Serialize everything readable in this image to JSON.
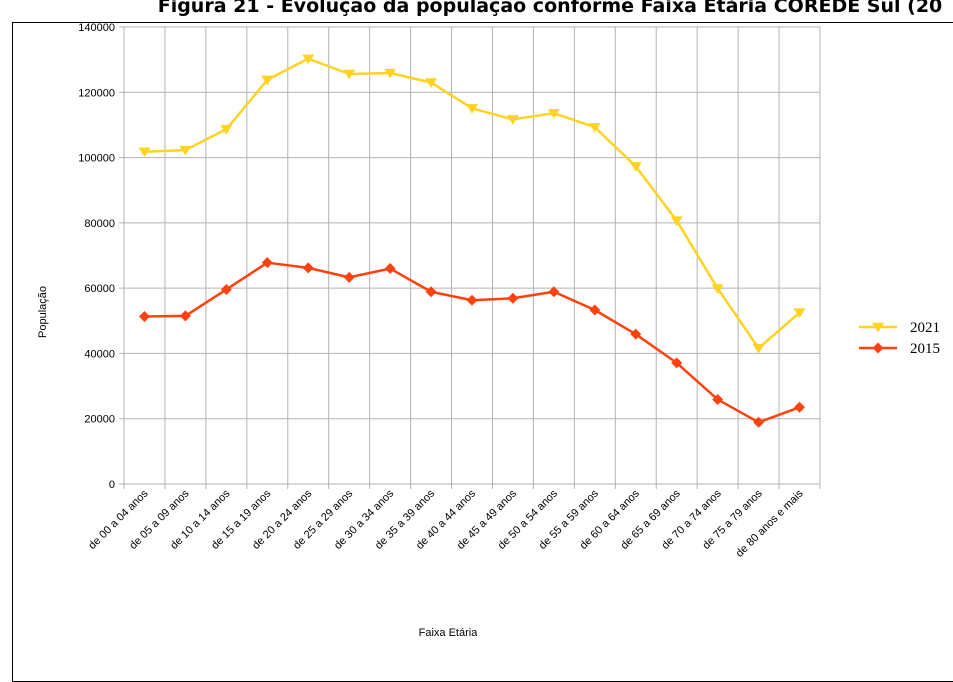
{
  "figure_title": "Figura 21 - Evolução da população conforme Faixa Etária COREDE Sul (20",
  "chart_data": {
    "type": "line",
    "xlabel": "Faixa Etária",
    "ylabel": "População",
    "ylim": [
      0,
      140000
    ],
    "yticks": [
      0,
      20000,
      40000,
      60000,
      80000,
      100000,
      120000,
      140000
    ],
    "grid": true,
    "legend_position": "right",
    "categories": [
      "de 00 a 04 anos",
      "de 05 a 09 anos",
      "de 10 a 14 anos",
      "de 15 a 19 anos",
      "de 20 a 24 anos",
      "de 25 a 29 anos",
      "de 30 a 34 anos",
      "de 35 a 39 anos",
      "de 40 a 44 anos",
      "de 45 a 49 anos",
      "de 50 a 54 anos",
      "de 55 a 59 anos",
      "de 60 a 64 anos",
      "de 65 a 69 anos",
      "de 70 a 74 anos",
      "de 75 a 79 anos",
      "de 80 anos e mais"
    ],
    "series": [
      {
        "name": "2021",
        "color": "#ffd320",
        "marker": "triangle-down",
        "values": [
          101800,
          102300,
          108700,
          123800,
          130300,
          125600,
          125900,
          123000,
          115100,
          111700,
          113600,
          109300,
          97300,
          80700,
          59900,
          41600,
          52500
        ]
      },
      {
        "name": "2015",
        "color": "#ff420e",
        "marker": "diamond",
        "values": [
          51300,
          51500,
          59600,
          67800,
          66200,
          63300,
          66000,
          58900,
          56300,
          56900,
          58900,
          53300,
          45900,
          37100,
          25900,
          18900,
          23500
        ]
      }
    ]
  }
}
